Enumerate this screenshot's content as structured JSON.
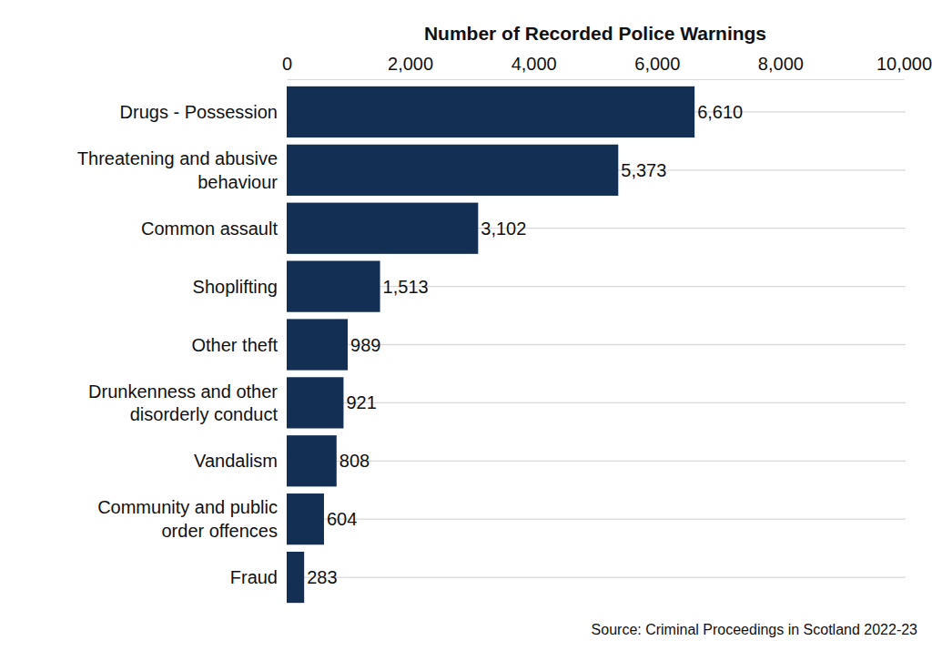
{
  "chart_data": {
    "type": "bar",
    "orientation": "horizontal",
    "x_label": "Number of Recorded Police Warnings",
    "source": "Source: Criminal Proceedings in Scotland 2022-23",
    "categories": [
      "Drugs - Possession",
      "Threatening and abusive behaviour",
      "Common assault",
      "Shoplifting",
      "Other theft",
      "Drunkenness and other disorderly conduct",
      "Vandalism",
      "Community and public order offences",
      "Fraud"
    ],
    "values": [
      6610,
      5373,
      3102,
      1513,
      989,
      921,
      808,
      604,
      283
    ],
    "value_labels": [
      "6,610",
      "5,373",
      "3,102",
      "1,513",
      "989",
      "921",
      "808",
      "604",
      "283"
    ],
    "color": "#132f54",
    "xlim": [
      0,
      10000
    ],
    "xticks": [
      0,
      {
        "value": 2000,
        "label": "2,000"
      },
      {
        "value": 4000,
        "label": "4,000"
      },
      {
        "value": 6000,
        "label": "6,000"
      },
      {
        "value": 8000,
        "label": "8,000"
      },
      {
        "value": 10000,
        "label": "10,000"
      }
    ],
    "grid": true,
    "data_labels": true
  }
}
